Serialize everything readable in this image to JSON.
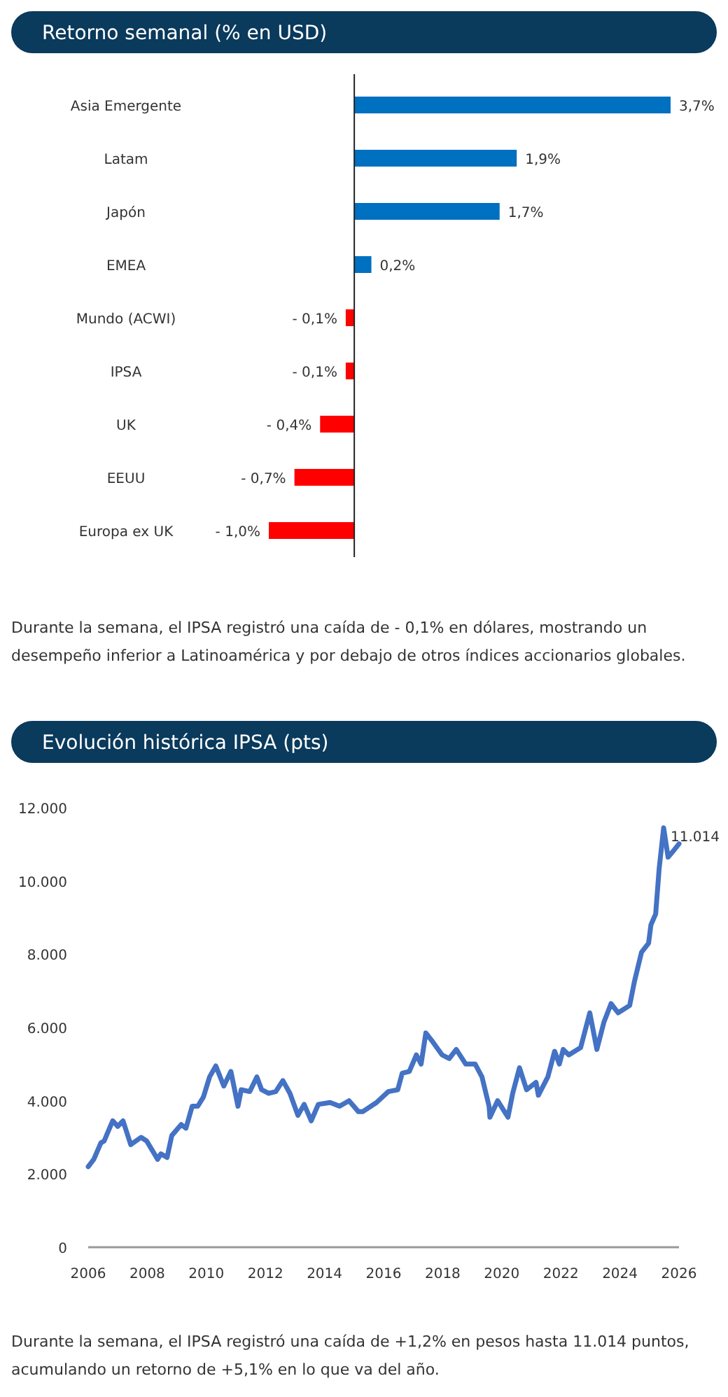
{
  "chart_data": [
    {
      "type": "bar",
      "orientation": "horizontal",
      "title": "Retorno semanal (% en USD)",
      "categories": [
        "Asia Emergente",
        "Latam",
        "Japón",
        "EMEA",
        "Mundo (ACWI)",
        "IPSA",
        "UK",
        "EEUU",
        "Europa ex UK"
      ],
      "values": [
        3.7,
        1.9,
        1.7,
        0.2,
        -0.1,
        -0.1,
        -0.4,
        -0.7,
        -1.0
      ],
      "colors": [
        "#0070c0",
        "#0070c0",
        "#0070c0",
        "#0070c0",
        "#ff0000",
        "#ff0000",
        "#ff0000",
        "#ff0000",
        "#ff0000"
      ],
      "value_labels": [
        "3,7%",
        "1,9%",
        "1,7%",
        "0,2%",
        "- 0,1%",
        "- 0,1%",
        "- 0,4%",
        "- 0,7%",
        "- 1,0%"
      ],
      "annotations": [
        "Durante la semana, el IPSA registró una caída de - 0,1% en dólares, mostrando un desempeño inferior a Latinoamérica y por debajo de otros índices accionarios globales."
      ]
    },
    {
      "type": "line",
      "title": "Evolución histórica IPSA (pts)",
      "xlim": [
        2006,
        2026
      ],
      "xticks": [
        2006,
        2008,
        2010,
        2012,
        2014,
        2016,
        2018,
        2020,
        2022,
        2024,
        2026
      ],
      "ylim": [
        0,
        12000
      ],
      "yticks": [
        0,
        {
          "value": 2000,
          "label": "2.000"
        },
        {
          "value": 4000,
          "label": "4.000"
        },
        {
          "value": 6000,
          "label": "6.000"
        },
        {
          "value": 8000,
          "label": "8.000"
        },
        {
          "value": 10000,
          "label": "10.000"
        },
        {
          "value": 12000,
          "label": "12.000"
        }
      ],
      "grid": false,
      "marker": "none",
      "line_style": "solid",
      "series": [
        {
          "color": "#4472c4",
          "x": [
            2006.0,
            2006.19,
            2006.43,
            2006.54,
            2006.67,
            2006.83,
            2007.0,
            2007.18,
            2007.44,
            2007.79,
            2007.98,
            2008.35,
            2008.46,
            2008.67,
            2008.83,
            2009.15,
            2009.31,
            2009.52,
            2009.71,
            2009.9,
            2010.11,
            2010.32,
            2010.59,
            2010.83,
            2011.07,
            2011.18,
            2011.47,
            2011.71,
            2011.87,
            2012.11,
            2012.35,
            2012.59,
            2012.83,
            2013.1,
            2013.31,
            2013.55,
            2013.79,
            2014.19,
            2014.51,
            2014.83,
            2015.15,
            2015.29,
            2015.76,
            2016.16,
            2016.48,
            2016.63,
            2016.87,
            2017.11,
            2017.27,
            2017.43,
            2017.67,
            2017.98,
            2018.22,
            2018.46,
            2018.78,
            2019.1,
            2019.33,
            2019.57,
            2019.6,
            2019.86,
            2020.21,
            2020.37,
            2020.6,
            2020.84,
            2021.16,
            2021.24,
            2021.56,
            2021.79,
            2021.95,
            2022.08,
            2022.27,
            2022.67,
            2022.98,
            2023.22,
            2023.46,
            2023.7,
            2023.94,
            2024.33,
            2024.49,
            2024.73,
            2024.97,
            2025.05,
            2025.21,
            2025.33,
            2025.48,
            2025.63,
            2025.84,
            2026.0
          ],
          "values": [
            2200,
            2400,
            2850,
            2900,
            3150,
            3450,
            3300,
            3450,
            2800,
            3000,
            2900,
            2400,
            2550,
            2450,
            3050,
            3350,
            3250,
            3850,
            3850,
            4100,
            4650,
            4950,
            4400,
            4800,
            3850,
            4300,
            4250,
            4650,
            4300,
            4200,
            4250,
            4550,
            4200,
            3600,
            3900,
            3450,
            3900,
            3950,
            3850,
            4000,
            3700,
            3700,
            3950,
            4250,
            4300,
            4750,
            4800,
            5250,
            5000,
            5850,
            5600,
            5250,
            5150,
            5400,
            5000,
            5000,
            4650,
            3850,
            3550,
            4000,
            3550,
            4200,
            4900,
            4300,
            4500,
            4150,
            4650,
            5350,
            5000,
            5400,
            5250,
            5450,
            6400,
            5400,
            6150,
            6650,
            6400,
            6600,
            7250,
            8050,
            8300,
            8800,
            9100,
            10350,
            11450,
            10650,
            10850,
            11014
          ]
        }
      ],
      "annotations": [
        {
          "text": "11.014",
          "x": 2026.0,
          "y": 11014
        },
        "Durante la semana, el IPSA registró una caída de +1,2% en pesos hasta 11.014 puntos, acumulando un retorno de +5,1% en lo que va del año."
      ]
    }
  ]
}
